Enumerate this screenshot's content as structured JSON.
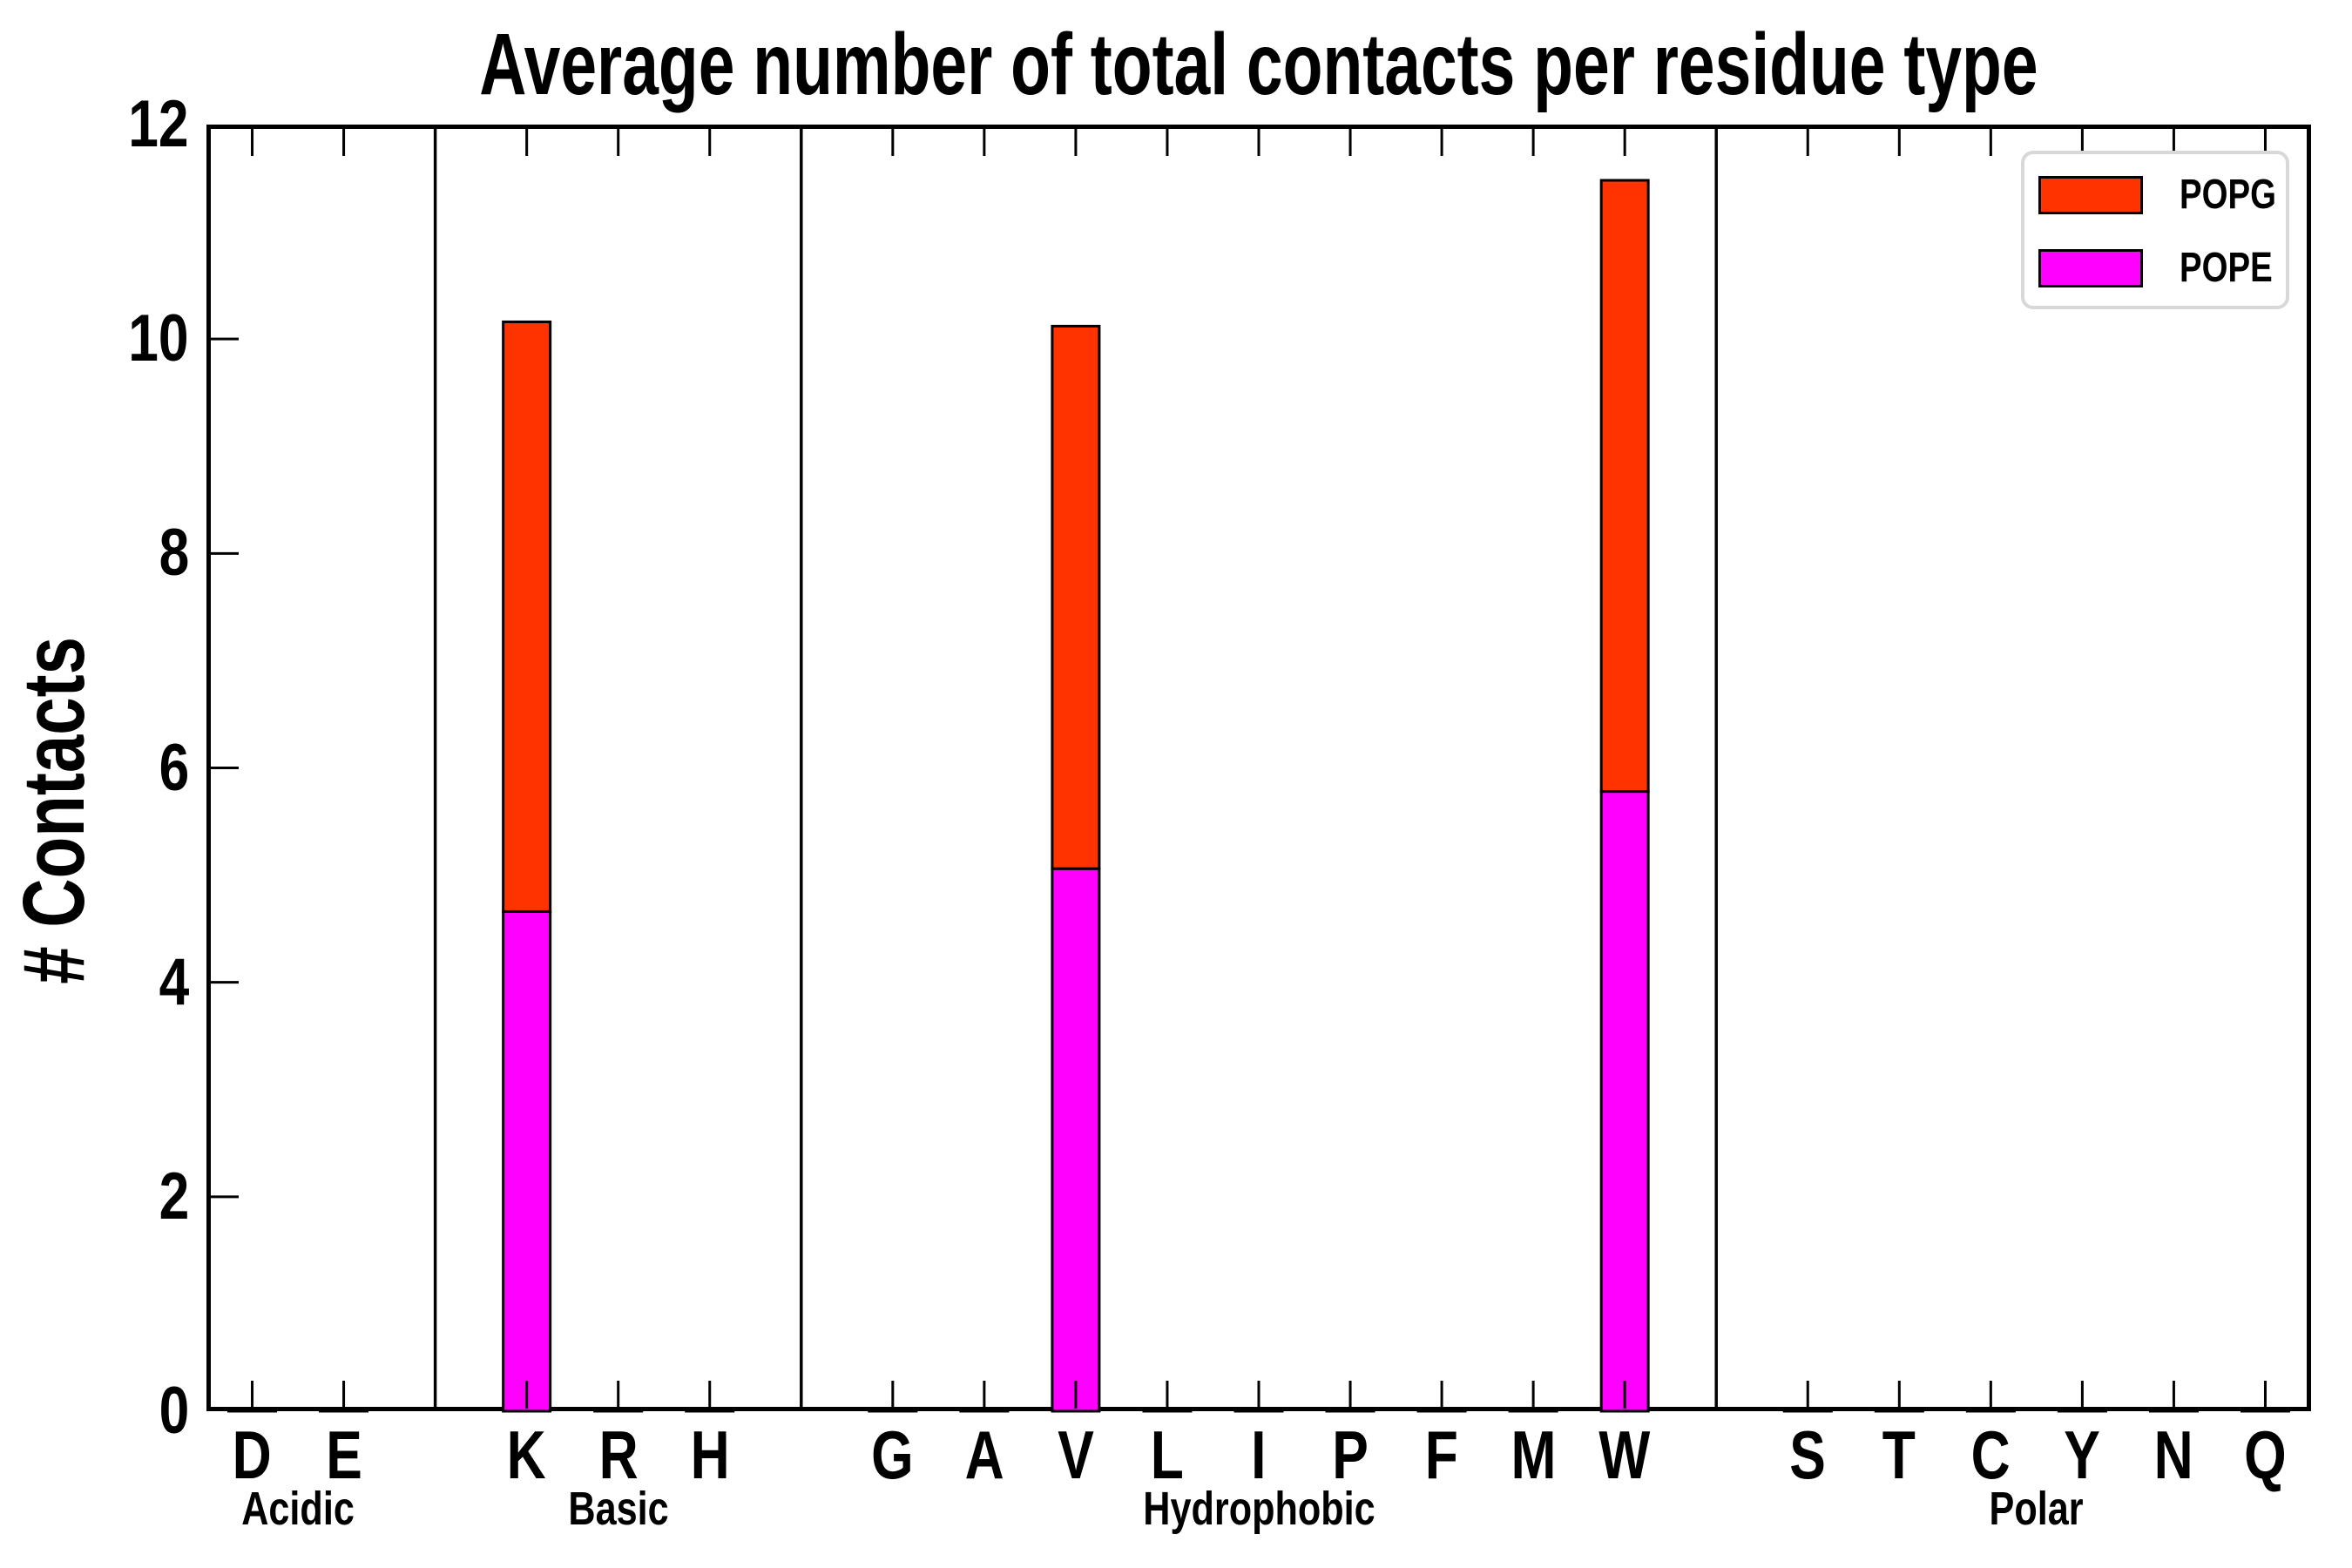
{
  "chart_data": {
    "type": "bar",
    "stacked": true,
    "title": "Average number of total contacts per residue type",
    "ylabel": "# Contacts",
    "xlabel": "",
    "ylim": [
      0,
      12
    ],
    "yticks": [
      0,
      2,
      4,
      6,
      8,
      10,
      12
    ],
    "grid": false,
    "legend_position": "upper right",
    "groups": [
      {
        "label": "Acidic",
        "residues": [
          "D",
          "E"
        ]
      },
      {
        "label": "Basic",
        "residues": [
          "K",
          "R",
          "H"
        ]
      },
      {
        "label": "Hydrophobic",
        "residues": [
          "G",
          "A",
          "V",
          "L",
          "I",
          "P",
          "F",
          "M",
          "W"
        ]
      },
      {
        "label": "Polar",
        "residues": [
          "S",
          "T",
          "C",
          "Y",
          "N",
          "Q"
        ]
      }
    ],
    "categories": [
      "D",
      "E",
      "K",
      "R",
      "H",
      "G",
      "A",
      "V",
      "L",
      "I",
      "P",
      "F",
      "M",
      "W",
      "S",
      "T",
      "C",
      "Y",
      "N",
      "Q"
    ],
    "stack_order": [
      "POPE",
      "POPG"
    ],
    "series": [
      {
        "name": "POPG",
        "color": "#ff3300",
        "values": [
          0.01,
          0.01,
          5.5,
          0.01,
          0.01,
          0.01,
          0.01,
          5.06,
          0.01,
          0.01,
          0.01,
          0.01,
          0.01,
          5.7,
          0.01,
          0.01,
          0.01,
          0.01,
          0.01,
          0.01
        ]
      },
      {
        "name": "POPE",
        "color": "#ff00ff",
        "values": [
          0.01,
          0.01,
          4.66,
          0.01,
          0.01,
          0.01,
          0.01,
          5.06,
          0.01,
          0.01,
          0.01,
          0.01,
          0.01,
          5.78,
          0.01,
          0.01,
          0.01,
          0.01,
          0.01,
          0.01
        ]
      }
    ],
    "totals": {
      "K": 10.16,
      "V": 10.12,
      "W": 11.48
    },
    "legend": {
      "entries": [
        {
          "name": "POPG",
          "color": "#ff3300"
        },
        {
          "name": "POPE",
          "color": "#ff00ff"
        }
      ]
    },
    "colors": {
      "bar_edge": "#000000",
      "axis": "#000000",
      "legend_border": "#d8d8d8"
    }
  }
}
